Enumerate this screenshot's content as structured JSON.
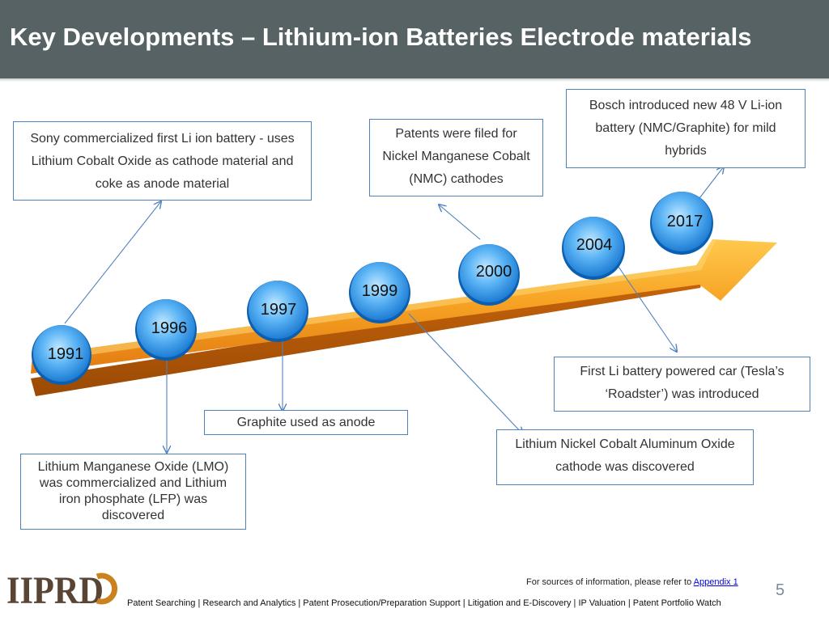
{
  "title": "Key Developments – Lithium-ion Batteries Electrode materials",
  "timeline": [
    {
      "year": "1991",
      "event": "Sony commercialized first Li ion battery  - uses Lithium Cobalt Oxide as cathode material  and coke as anode material"
    },
    {
      "year": "1996",
      "event": "Lithium Manganese Oxide (LMO) was commercialized and Lithium iron phosphate (LFP) was discovered"
    },
    {
      "year": "1997",
      "event": "Graphite used as anode"
    },
    {
      "year": "1999",
      "event": "Lithium Nickel Cobalt Aluminum Oxide cathode  was discovered"
    },
    {
      "year": "2000",
      "event": "Patents were filed  for Nickel Manganese Cobalt (NMC) cathodes"
    },
    {
      "year": "2004",
      "event": "First Li battery powered car (Tesla’s ‘Roadster’) was introduced"
    },
    {
      "year": "2017",
      "event": "Bosch introduced new 48 V Li-ion battery (NMC/Graphite) for mild hybrids"
    }
  ],
  "footer": {
    "sources_text": "For sources of information, please refer to ",
    "sources_link": "Appendix 1",
    "page_number": "5",
    "services": "Patent Searching | Research and Analytics | Patent Prosecution/Preparation Support | Litigation and E-Discovery | IP Valuation |  Patent Portfolio Watch",
    "logo_text": "IIPRD"
  },
  "colors": {
    "header_bg": "#566263",
    "arrow": "#f39a1e",
    "circle": "#2a8ee0",
    "box_border": "#4f83bd"
  }
}
